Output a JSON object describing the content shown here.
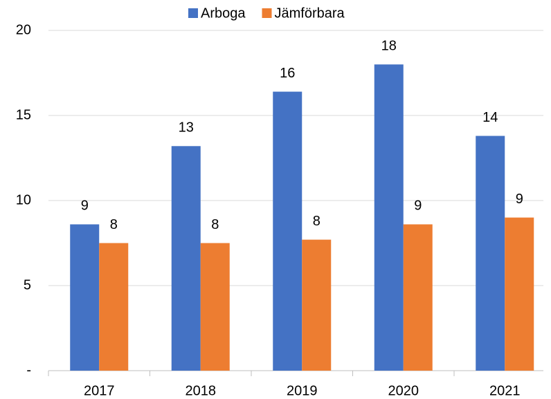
{
  "chart_data": {
    "type": "bar",
    "categories": [
      "2017",
      "2018",
      "2019",
      "2020",
      "2021"
    ],
    "series": [
      {
        "name": "Arboga",
        "color": "#4472c4",
        "values": [
          8.6,
          13.2,
          16.4,
          18.0,
          13.8
        ],
        "value_labels": [
          "9",
          "13",
          "16",
          "18",
          "14"
        ]
      },
      {
        "name": "Jämförbara",
        "color": "#ed7d31",
        "values": [
          7.5,
          7.5,
          7.7,
          8.6,
          9.0
        ],
        "value_labels": [
          "8",
          "8",
          "8",
          "9",
          "9"
        ]
      }
    ],
    "ylim": [
      0,
      20
    ],
    "yticks": [
      {
        "value": 0,
        "label": "-"
      },
      5,
      10,
      15,
      20
    ],
    "grid": true,
    "legend": "top"
  }
}
